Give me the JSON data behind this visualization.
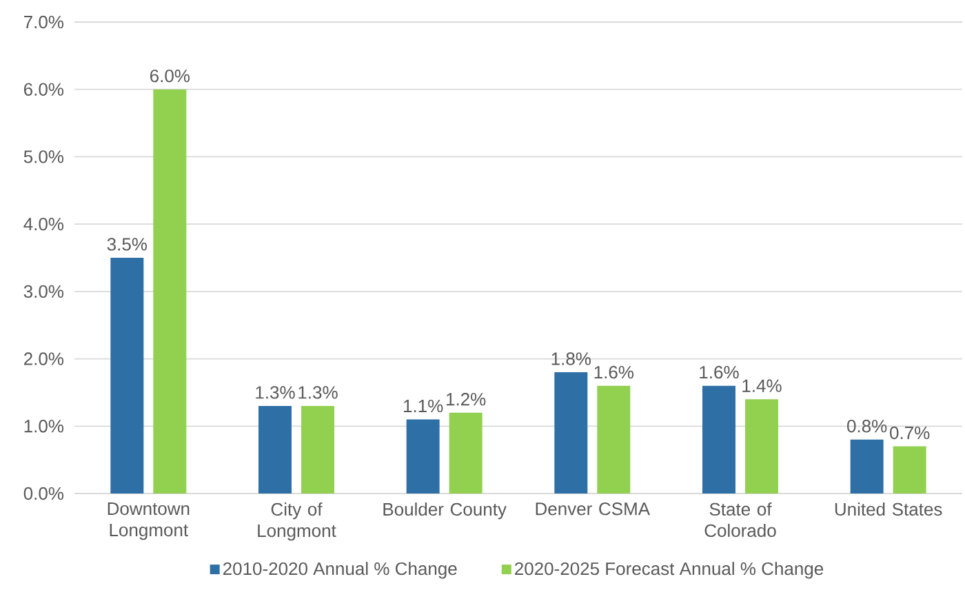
{
  "chart_data": {
    "type": "bar",
    "categories": [
      "Downtown Longmont",
      "City of Longmont",
      "Boulder County",
      "Denver CSMA",
      "State of Colorado",
      "United States"
    ],
    "series": [
      {
        "name": "2010-2020 Annual % Change",
        "color": "#2e6fa6",
        "values": [
          3.5,
          1.3,
          1.1,
          1.8,
          1.6,
          0.8
        ],
        "value_labels": [
          "3.5%",
          "1.3%",
          "1.1%",
          "1.8%",
          "1.6%",
          "0.8%"
        ]
      },
      {
        "name": "2020-2025 Forecast Annual % Change",
        "color": "#92d050",
        "values": [
          6.0,
          1.3,
          1.2,
          1.6,
          1.4,
          0.7
        ],
        "value_labels": [
          "6.0%",
          "1.3%",
          "1.2%",
          "1.6%",
          "1.4%",
          "0.7%"
        ]
      }
    ],
    "ylim": [
      0,
      7
    ],
    "yticks": [
      {
        "value": 0,
        "label": "0.0%"
      },
      {
        "value": 1,
        "label": "1.0%"
      },
      {
        "value": 2,
        "label": "2.0%"
      },
      {
        "value": 3,
        "label": "3.0%"
      },
      {
        "value": 4,
        "label": "4.0%"
      },
      {
        "value": 5,
        "label": "5.0%"
      },
      {
        "value": 6,
        "label": "6.0%"
      },
      {
        "value": 7,
        "label": "7.0%"
      }
    ],
    "grid": "y",
    "legend": "bottom"
  }
}
